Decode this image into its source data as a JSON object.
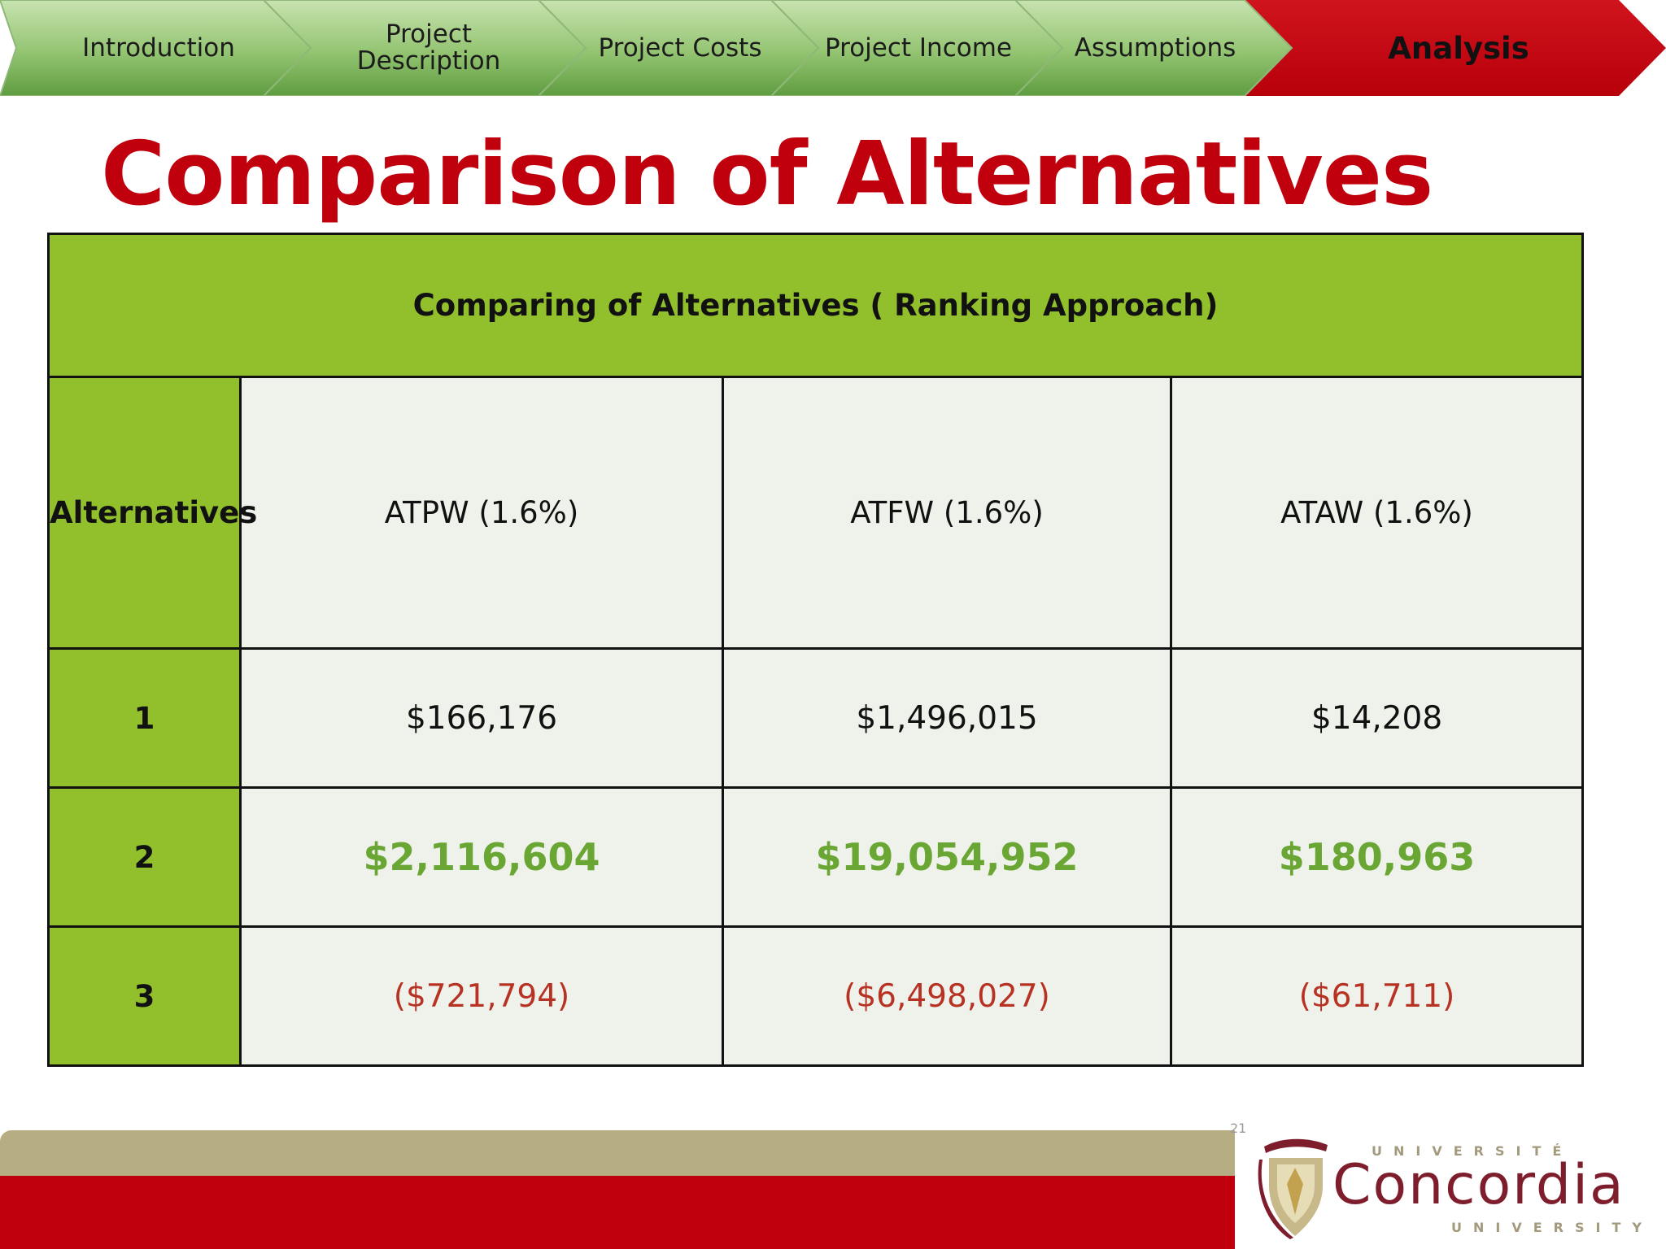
{
  "nav": {
    "items": [
      {
        "label": "Introduction",
        "active": false
      },
      {
        "label": "Project\nDescription",
        "active": false
      },
      {
        "label": "Project Costs",
        "active": false
      },
      {
        "label": "Project Income",
        "active": false
      },
      {
        "label": "Assumptions",
        "active": false
      },
      {
        "label": "Analysis",
        "active": true
      }
    ],
    "colors": {
      "inactive_top": "#c3e0a8",
      "inactive_bottom": "#6faa4c",
      "active": "#c0000c"
    }
  },
  "slide": {
    "title": "Comparison of Alternatives"
  },
  "table": {
    "caption": "Comparing of Alternatives ( Ranking Approach)",
    "row_header_label": "Alternatives",
    "columns": [
      "ATPW (1.6%)",
      "ATFW (1.6%)",
      "ATAW (1.6%)"
    ],
    "rows": [
      {
        "alt": "1",
        "values": [
          "$166,176",
          "$1,496,015",
          "$14,208"
        ],
        "style": "normal"
      },
      {
        "alt": "2",
        "values": [
          "$2,116,604",
          "$19,054,952",
          "$180,963"
        ],
        "style": "best"
      },
      {
        "alt": "3",
        "values": [
          "($721,794)",
          "($6,498,027)",
          "($61,711)"
        ],
        "style": "negative"
      }
    ],
    "colors": {
      "header_green": "#92c02c",
      "cell_bg": "#eef2ea",
      "best_text": "#6aa633",
      "negative_text": "#b83224"
    }
  },
  "footer": {
    "page_number": "21",
    "colors": {
      "tan": "#b7ad82",
      "red": "#c0000c"
    }
  },
  "logo": {
    "top_text": "UNIVERSITÉ",
    "name": "Concordia",
    "bottom_text": "UNIVERSITY"
  }
}
